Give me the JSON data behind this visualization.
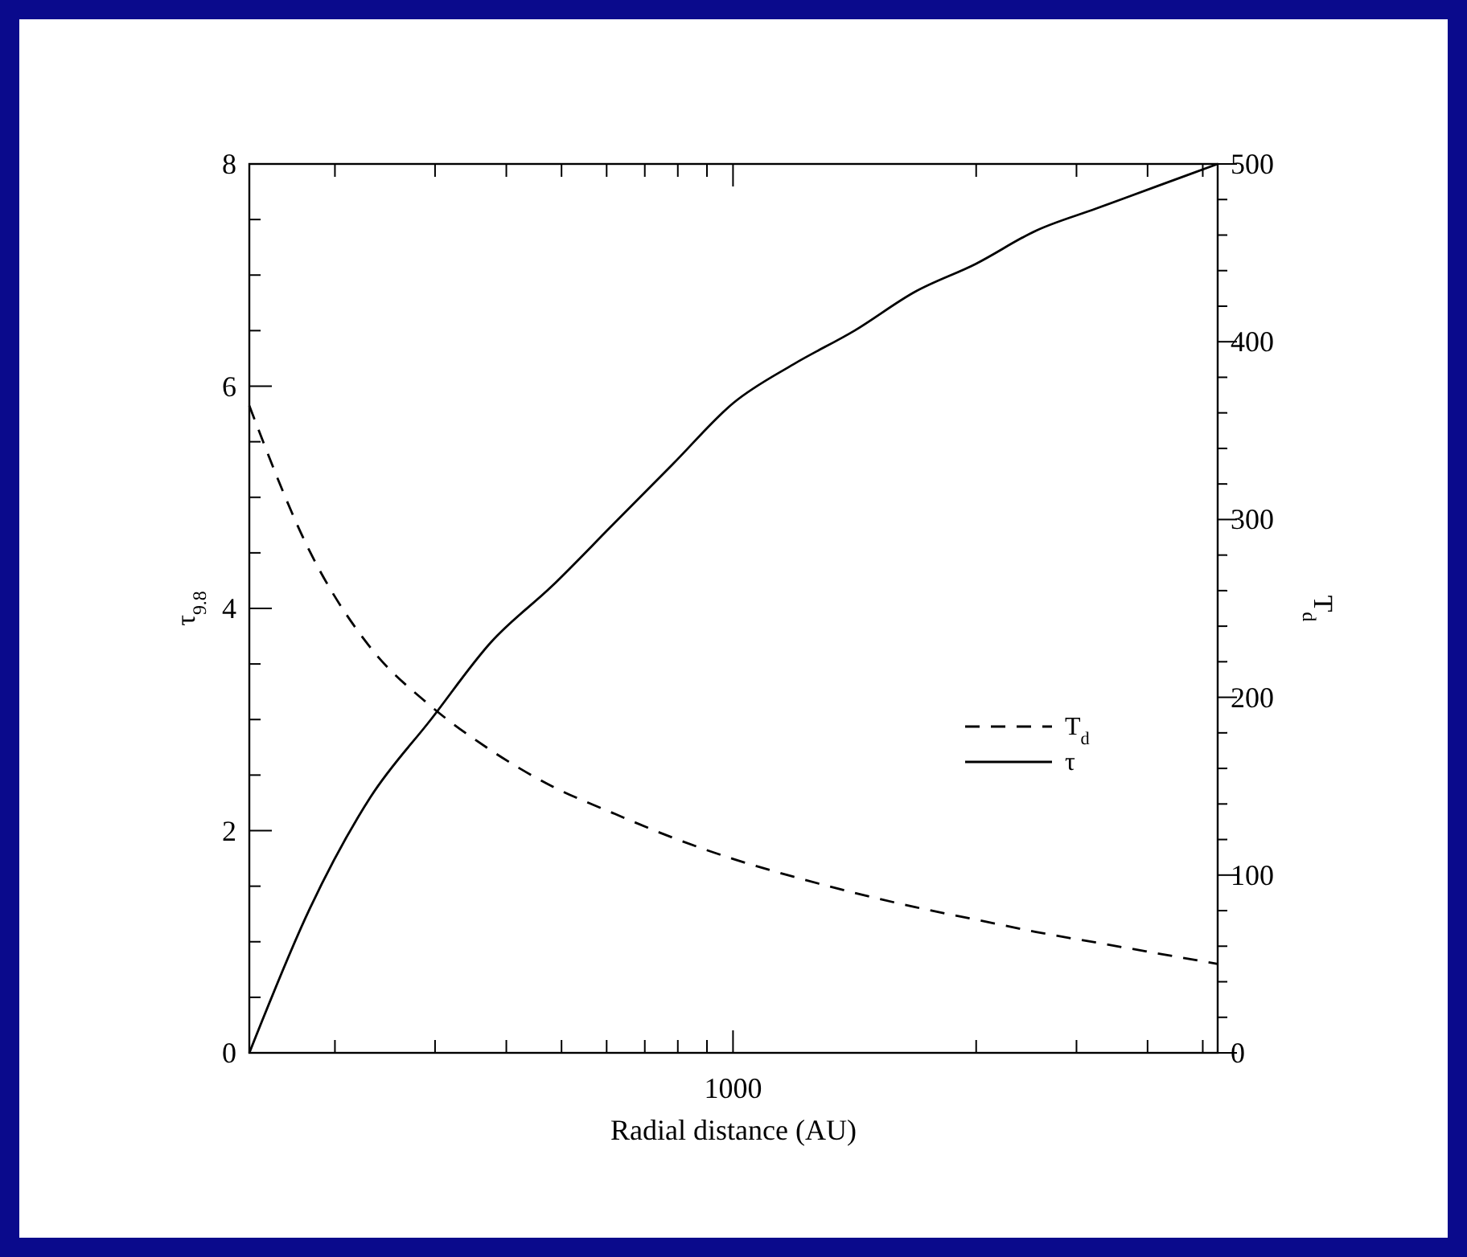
{
  "chart_data": {
    "type": "line",
    "xlabel": "Radial distance (AU)",
    "ylabel": "τ$_{9.8}$",
    "y2label": "T$_{d}$",
    "categories": [
      null,
      null,
      null,
      null,
      null,
      null,
      null,
      null,
      null,
      null,
      null,
      null,
      null,
      null,
      null,
      null,
      null
    ],
    "annotations": [
      "1000"
    ],
    "ylim": [
      0,
      8
    ],
    "yticks": [
      0,
      {
        "value": 0.5,
        "label": null
      },
      {
        "value": 1,
        "label": null
      },
      {
        "value": 1.5,
        "label": null
      },
      2,
      {
        "value": 2.5,
        "label": null
      },
      {
        "value": 3,
        "label": null
      },
      {
        "value": 3.5,
        "label": null
      },
      4,
      {
        "value": 4.5,
        "label": null
      },
      {
        "value": 5,
        "label": null
      },
      {
        "value": 5.5,
        "label": null
      },
      6,
      {
        "value": 6.5,
        "label": null
      },
      {
        "value": 7,
        "label": null
      },
      {
        "value": 7.5,
        "label": null
      },
      8
    ],
    "y2lim": [
      0,
      500
    ],
    "y2ticks": [
      0,
      {
        "value": 20,
        "label": null
      },
      {
        "value": 40,
        "label": null
      },
      {
        "value": 60,
        "label": null
      },
      {
        "value": 80,
        "label": null
      },
      100,
      {
        "value": 120,
        "label": null
      },
      {
        "value": 140,
        "label": null
      },
      {
        "value": 160,
        "label": null
      },
      {
        "value": 180,
        "label": null
      },
      200,
      {
        "value": 220,
        "label": null
      },
      {
        "value": 240,
        "label": null
      },
      {
        "value": 260,
        "label": null
      },
      {
        "value": 280,
        "label": null
      },
      300,
      {
        "value": 320,
        "label": null
      },
      {
        "value": 340,
        "label": null
      },
      {
        "value": 360,
        "label": null
      },
      {
        "value": 380,
        "label": null
      },
      400,
      {
        "value": 420,
        "label": null
      },
      {
        "value": 440,
        "label": null
      },
      {
        "value": 460,
        "label": null
      },
      {
        "value": 480,
        "label": null
      },
      500
    ],
    "legend": "right",
    "grid": false,
    "series": [
      {
        "name": "T$_{d}$",
        "color": "#000000",
        "axis": "y2",
        "line_style": "dashed",
        "values": [
          364,
          282,
          228,
          195,
          170,
          150,
          135,
          121,
          109,
          99,
          90,
          82,
          75,
          68,
          62,
          56,
          50
        ]
      },
      {
        "name": "τ",
        "color": "#000000",
        "axis": "y",
        "line_style": "solid",
        "values": [
          0,
          1.3,
          2.3,
          3.0,
          3.7,
          4.2,
          4.75,
          5.3,
          5.85,
          6.2,
          6.5,
          6.85,
          7.1,
          7.4,
          7.6,
          7.8,
          8
        ]
      }
    ]
  }
}
